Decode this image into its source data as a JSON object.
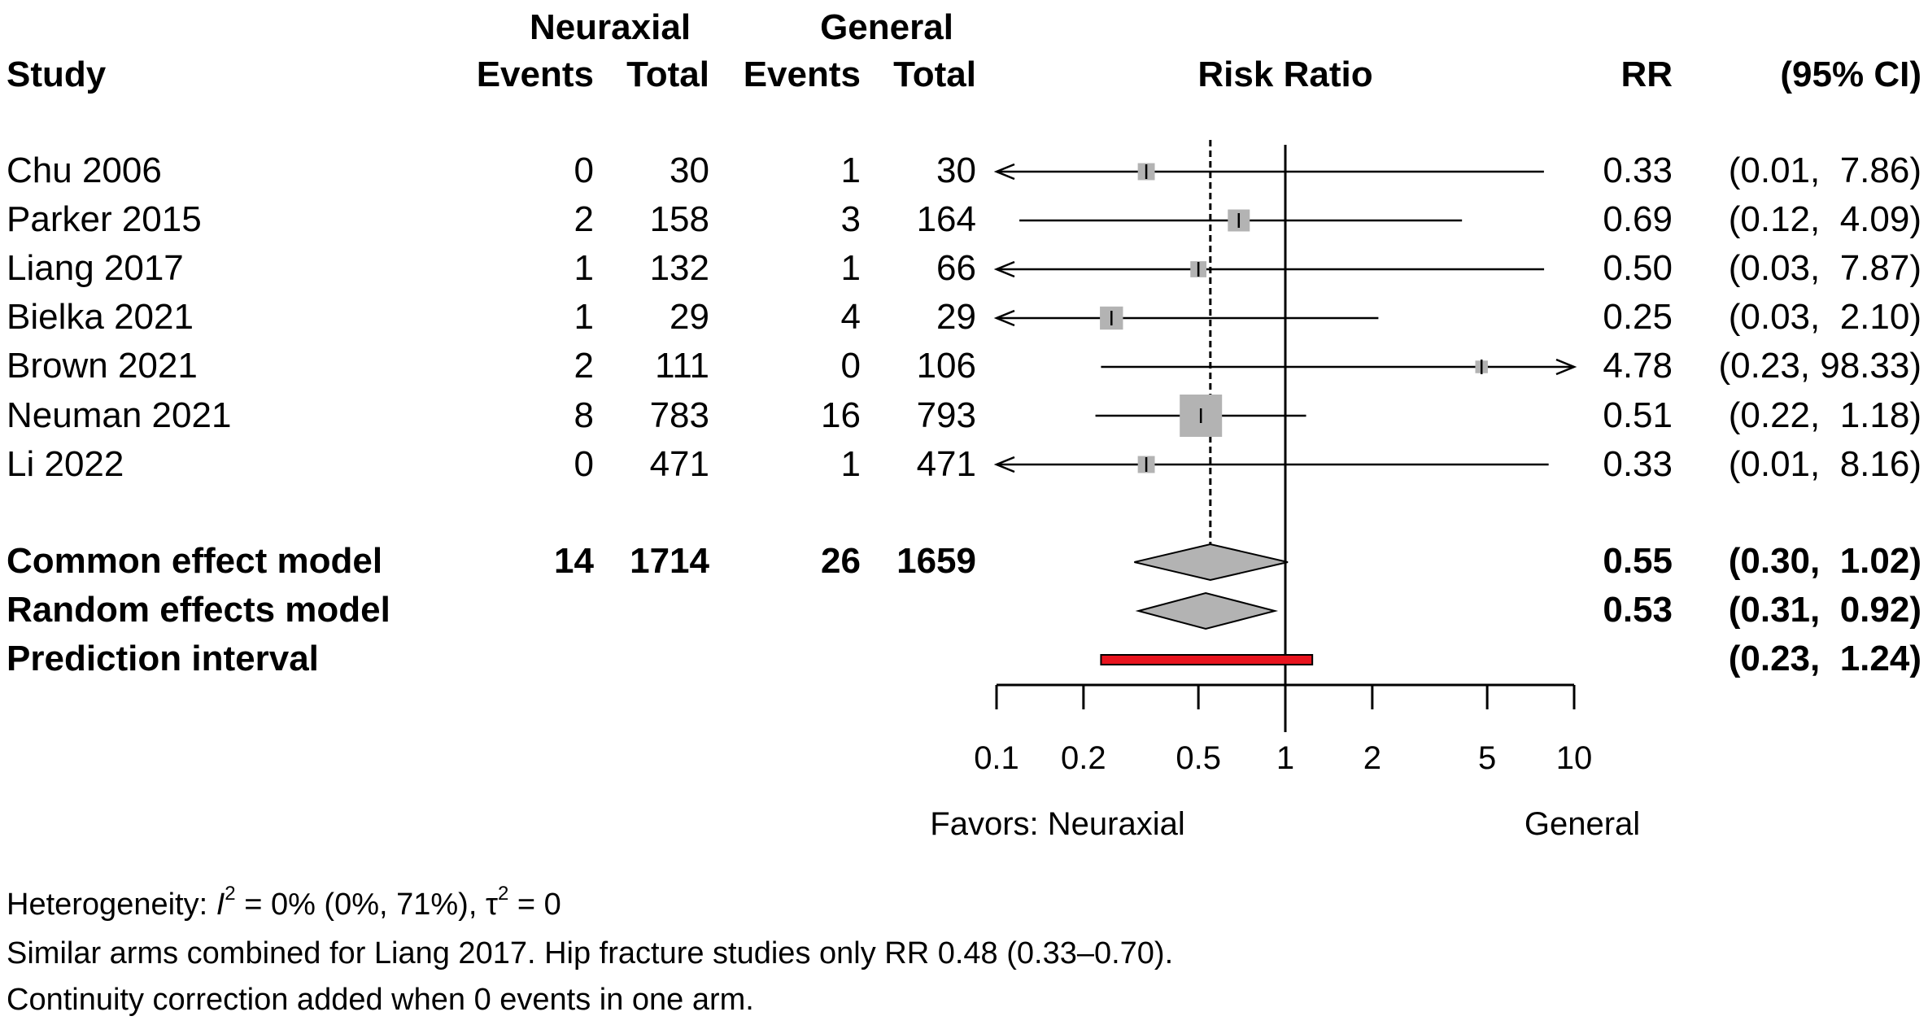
{
  "headers": {
    "group1": "Neuraxial",
    "group2": "General",
    "study": "Study",
    "events1": "Events",
    "total1": "Total",
    "events2": "Events",
    "total2": "Total",
    "risk_ratio": "Risk Ratio",
    "rr": "RR",
    "ci": "(95% CI)"
  },
  "studies": [
    {
      "name": "Chu 2006",
      "e1": "0",
      "t1": "30",
      "e2": "1",
      "t2": "30",
      "rr_text": "0.33",
      "ci_text": "(0.01,  7.86)"
    },
    {
      "name": "Parker 2015",
      "e1": "2",
      "t1": "158",
      "e2": "3",
      "t2": "164",
      "rr_text": "0.69",
      "ci_text": "(0.12,  4.09)"
    },
    {
      "name": "Liang 2017",
      "e1": "1",
      "t1": "132",
      "e2": "1",
      "t2": "66",
      "rr_text": "0.50",
      "ci_text": "(0.03,  7.87)"
    },
    {
      "name": "Bielka 2021",
      "e1": "1",
      "t1": "29",
      "e2": "4",
      "t2": "29",
      "rr_text": "0.25",
      "ci_text": "(0.03,  2.10)"
    },
    {
      "name": "Brown 2021",
      "e1": "2",
      "t1": "111",
      "e2": "0",
      "t2": "106",
      "rr_text": "4.78",
      "ci_text": "(0.23, 98.33)"
    },
    {
      "name": "Neuman 2021",
      "e1": "8",
      "t1": "783",
      "e2": "16",
      "t2": "793",
      "rr_text": "0.51",
      "ci_text": "(0.22,  1.18)"
    },
    {
      "name": "Li 2022",
      "e1": "0",
      "t1": "471",
      "e2": "1",
      "t2": "471",
      "rr_text": "0.33",
      "ci_text": "(0.01,  8.16)"
    }
  ],
  "summaries": [
    {
      "name": "Common effect model",
      "e1": "14",
      "t1": "1714",
      "e2": "26",
      "t2": "1659",
      "rr_text": "0.55",
      "ci_text": "(0.30,  1.02)"
    },
    {
      "name": "Random effects model",
      "e1": "",
      "t1": "",
      "e2": "",
      "t2": "",
      "rr_text": "0.53",
      "ci_text": "(0.31,  0.92)"
    },
    {
      "name": "Prediction interval",
      "e1": "",
      "t1": "",
      "e2": "",
      "t2": "",
      "rr_text": "",
      "ci_text": "(0.23,  1.24)"
    }
  ],
  "axis": {
    "favors_left": "Favors: Neuraxial",
    "favors_right": "General"
  },
  "footnotes": {
    "heterogeneity_prefix": "Heterogeneity: ",
    "i_symbol": "I",
    "i_sup": "2",
    "heterogeneity_mid": " = 0% (0%, 71%), ",
    "tau_symbol": "τ",
    "tau_sup": "2",
    "heterogeneity_end": " = 0",
    "note1": "Similar arms combined for Liang 2017. Hip fracture studies only RR 0.48 (0.33–0.70).",
    "note2": "Continuity correction added when 0 events in one arm."
  },
  "colors": {
    "square": "#b3b3b3",
    "diamond": "#b3b3b3",
    "prediction": "#e8141e"
  },
  "chart_data": {
    "type": "forest",
    "scale": "log",
    "xlim": [
      0.1,
      10
    ],
    "x_ticks": [
      0.1,
      0.2,
      0.5,
      1,
      2,
      5,
      10
    ],
    "x_tick_labels": [
      "0.1",
      "0.2",
      "0.5",
      "1",
      "2",
      "5",
      "10"
    ],
    "reference_line": 1,
    "common_effect_line": 0.55,
    "studies": [
      {
        "name": "Chu 2006",
        "rr": 0.33,
        "lo": 0.01,
        "hi": 7.86,
        "weight": 0.6
      },
      {
        "name": "Parker 2015",
        "rr": 0.69,
        "lo": 0.12,
        "hi": 4.09,
        "weight": 1.3
      },
      {
        "name": "Liang 2017",
        "rr": 0.5,
        "lo": 0.03,
        "hi": 7.87,
        "weight": 0.5
      },
      {
        "name": "Bielka 2021",
        "rr": 0.25,
        "lo": 0.03,
        "hi": 2.1,
        "weight": 1.5
      },
      {
        "name": "Brown 2021",
        "rr": 4.78,
        "lo": 0.23,
        "hi": 98.33,
        "weight": 0.2
      },
      {
        "name": "Neuman 2021",
        "rr": 0.51,
        "lo": 0.22,
        "hi": 1.18,
        "weight": 7.0
      },
      {
        "name": "Li 2022",
        "rr": 0.33,
        "lo": 0.01,
        "hi": 8.16,
        "weight": 0.6
      }
    ],
    "common_effect": {
      "rr": 0.55,
      "lo": 0.3,
      "hi": 1.02
    },
    "random_effects": {
      "rr": 0.53,
      "lo": 0.31,
      "hi": 0.92
    },
    "prediction_interval": {
      "lo": 0.23,
      "hi": 1.24
    }
  }
}
